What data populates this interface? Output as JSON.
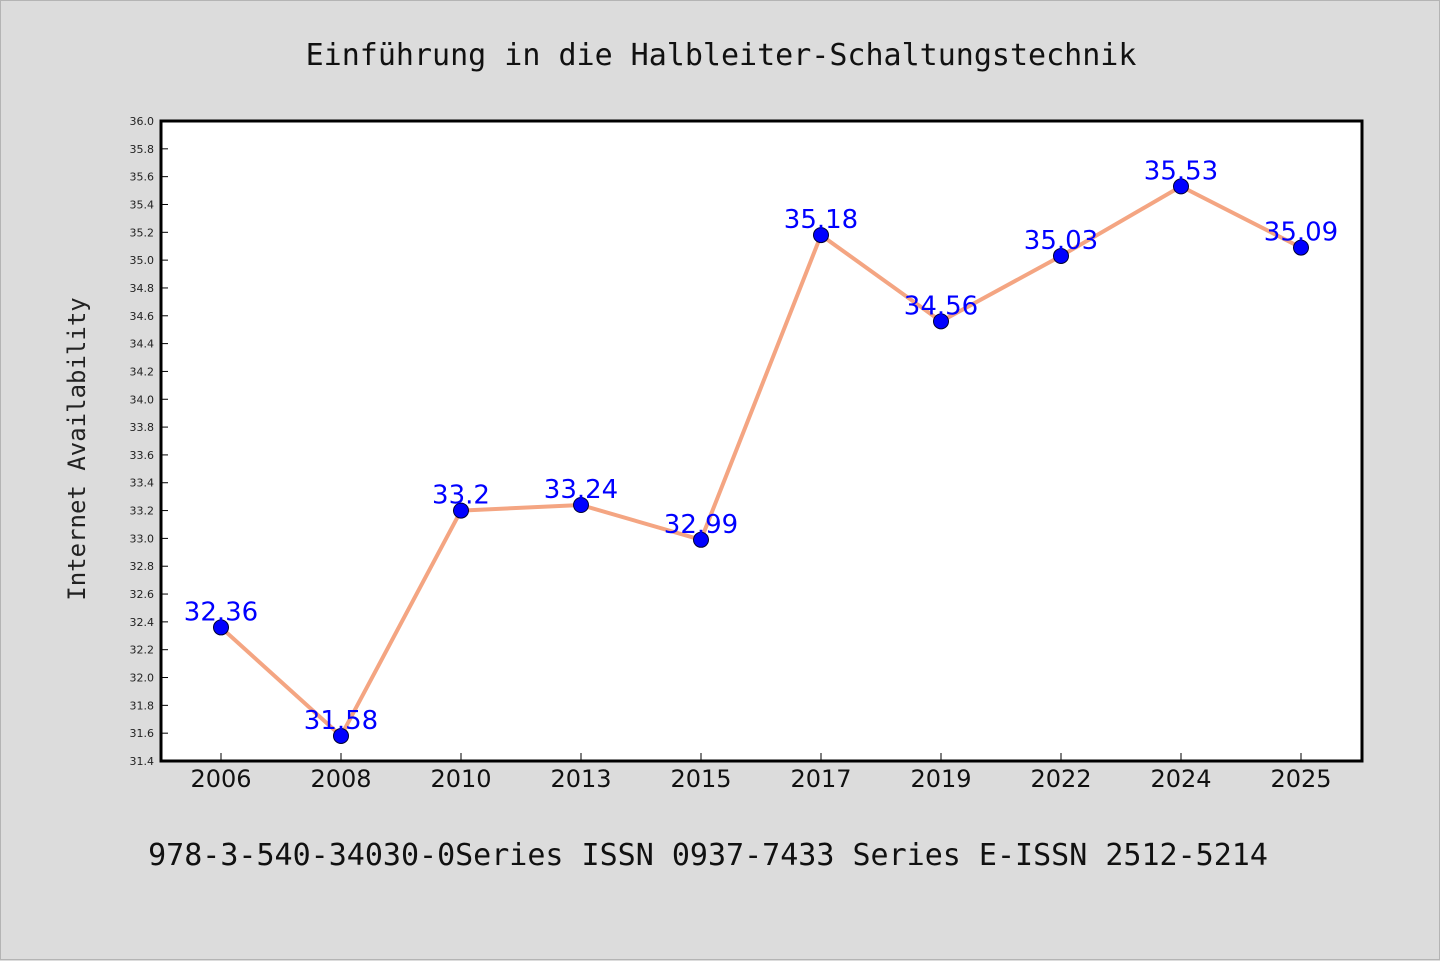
{
  "chart_data": {
    "type": "line",
    "title": "Einführung in die Halbleiter-Schaltungstechnik",
    "ylabel": "Internet Availability",
    "xlabel": "",
    "footer": "978-3-540-34030-0Series ISSN 0937-7433 Series E-ISSN 2512-5214",
    "categories": [
      "2006",
      "2008",
      "2010",
      "2013",
      "2015",
      "2017",
      "2019",
      "2022",
      "2024",
      "2025"
    ],
    "values": [
      32.36,
      31.58,
      33.2,
      33.24,
      32.99,
      35.18,
      34.56,
      35.03,
      35.53,
      35.09
    ],
    "data_labels": [
      "32.36",
      "31.58",
      "33.2",
      "33.24",
      "32.99",
      "35.18",
      "34.56",
      "35.03",
      "35.53",
      "35.09"
    ],
    "ylim": [
      31.4,
      36.0
    ],
    "yticks": [
      "31.4",
      "31.6",
      "31.8",
      "32.0",
      "32.2",
      "32.4",
      "32.6",
      "32.8",
      "33.0",
      "33.2",
      "33.4",
      "33.6",
      "33.8",
      "34.0",
      "34.2",
      "34.4",
      "34.6",
      "34.8",
      "35.0",
      "35.2",
      "35.4",
      "35.6",
      "35.8",
      "36.0"
    ],
    "grid": false,
    "legend": "none",
    "colors": {
      "line": "#f4a582",
      "marker": "#0000ff",
      "data_label": "#0000ff",
      "background": "#dcdcdc",
      "plot_background": "#ffffff"
    }
  }
}
